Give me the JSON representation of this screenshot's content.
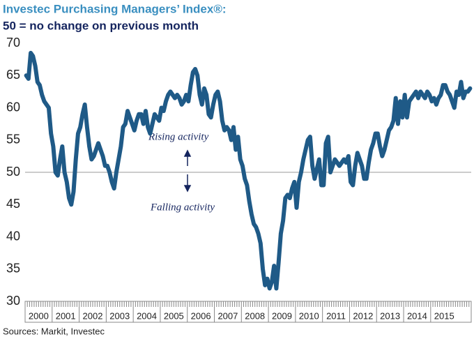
{
  "chart_data": {
    "type": "line",
    "title": "Investec Purchasing Managers’ Index®:",
    "subtitle": "50 =  no change on previous month",
    "source": "Sources: Markit, Investec",
    "annotations": [
      "Rising activity",
      "Falling activity"
    ],
    "reference_line": 50,
    "categories": [
      "2000",
      null,
      null,
      null,
      null,
      null,
      null,
      null,
      null,
      null,
      null,
      null,
      "2001",
      null,
      null,
      null,
      null,
      null,
      null,
      null,
      null,
      null,
      null,
      null,
      "2002",
      null,
      null,
      null,
      null,
      null,
      null,
      null,
      null,
      null,
      null,
      null,
      "2003",
      null,
      null,
      null,
      null,
      null,
      null,
      null,
      null,
      null,
      null,
      null,
      "2004",
      null,
      null,
      null,
      null,
      null,
      null,
      null,
      null,
      null,
      null,
      null,
      "2005",
      null,
      null,
      null,
      null,
      null,
      null,
      null,
      null,
      null,
      null,
      null,
      "2006",
      null,
      null,
      null,
      null,
      null,
      null,
      null,
      null,
      null,
      null,
      null,
      "2007",
      null,
      null,
      null,
      null,
      null,
      null,
      null,
      null,
      null,
      null,
      null,
      "2008",
      null,
      null,
      null,
      null,
      null,
      null,
      null,
      null,
      null,
      null,
      null,
      "2009",
      null,
      null,
      null,
      null,
      null,
      null,
      null,
      null,
      null,
      null,
      null,
      "2010",
      null,
      null,
      null,
      null,
      null,
      null,
      null,
      null,
      null,
      null,
      null,
      "2011",
      null,
      null,
      null,
      null,
      null,
      null,
      null,
      null,
      null,
      null,
      null,
      "2012",
      null,
      null,
      null,
      null,
      null,
      null,
      null,
      null,
      null,
      null,
      null,
      "2013",
      null,
      null,
      null,
      null,
      null,
      null,
      null,
      null,
      null,
      null,
      null,
      "2014",
      null,
      null,
      null,
      null,
      null,
      null,
      null,
      null,
      null,
      null,
      null,
      "2015",
      null,
      null,
      null,
      null,
      null,
      null,
      null,
      null,
      null,
      null,
      null,
      null,
      null,
      null,
      null,
      null,
      null
    ],
    "color": "#1f5a87",
    "values": [
      65,
      64.5,
      68.5,
      68,
      66.5,
      64,
      63.5,
      62,
      61,
      60.5,
      60,
      56,
      54,
      50,
      49.5,
      52,
      54,
      50,
      48.5,
      46,
      45,
      47,
      52,
      56,
      57,
      59,
      60.5,
      57,
      54,
      52,
      52.5,
      53.5,
      54.5,
      53.5,
      52.5,
      51,
      51,
      50,
      48.5,
      47.5,
      50,
      52,
      54,
      57,
      57.5,
      59.5,
      58.5,
      57.5,
      56.5,
      58,
      59,
      59,
      57.5,
      59.5,
      57,
      56,
      57.5,
      59,
      58.5,
      58,
      60,
      59.5,
      61,
      62,
      62.5,
      62,
      61.5,
      62,
      61.5,
      60.5,
      61,
      62,
      61,
      63.5,
      65.5,
      66,
      65,
      62,
      60.5,
      63,
      62,
      59,
      58.5,
      60.5,
      62,
      62.5,
      61,
      58,
      56.5,
      57,
      56.5,
      55,
      57,
      53.5,
      55.5,
      52,
      51,
      49,
      48,
      45.5,
      43.5,
      42,
      41.5,
      40.5,
      39,
      35,
      32.5,
      33.5,
      32,
      33,
      35.5,
      32,
      36,
      40.5,
      42.5,
      46,
      46.5,
      46,
      47.5,
      48.5,
      44.5,
      48.5,
      50,
      52,
      53.5,
      55,
      55.5,
      51,
      49,
      50.5,
      52,
      48,
      48,
      54.5,
      55.5,
      50,
      51,
      52,
      51.5,
      51,
      51.5,
      52,
      51.5,
      52.5,
      48.5,
      48,
      51,
      53,
      52,
      51,
      49,
      49,
      51.5,
      53.5,
      54.5,
      56,
      56,
      54,
      52.5,
      53.5,
      55,
      56.5,
      57,
      58,
      61.5,
      57.5,
      61,
      58.5,
      62,
      58.5,
      61,
      61.5,
      62,
      62.5,
      61.5,
      62.5,
      62,
      61.5,
      62.5,
      62,
      61,
      61.5,
      60.5,
      61.5,
      62,
      63.5,
      63.5,
      62.5,
      62,
      61,
      60,
      62.5,
      62,
      64,
      61.5,
      62.5,
      62.5,
      63
    ],
    "ylim": [
      30,
      70
    ],
    "yticks": [
      30,
      35,
      40,
      45,
      50,
      55,
      60,
      65,
      70
    ]
  }
}
